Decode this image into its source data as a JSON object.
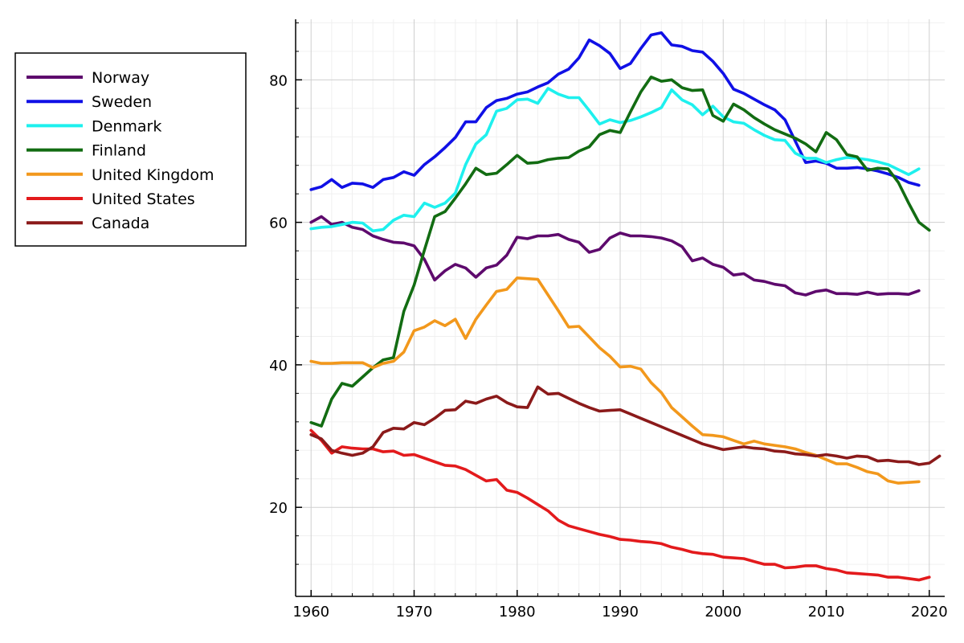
{
  "chart_data": {
    "type": "line",
    "title": "",
    "xlabel": "",
    "ylabel": "",
    "xlim": [
      1958.5,
      2021.5
    ],
    "ylim": [
      7.5,
      88.5
    ],
    "x_ticks": [
      1960,
      1970,
      1980,
      1990,
      2000,
      2010,
      2020
    ],
    "y_ticks": [
      20,
      40,
      60,
      80
    ],
    "x_tick_labels": [
      "1960",
      "1970",
      "1980",
      "1990",
      "2000",
      "2010",
      "2020"
    ],
    "y_tick_labels": [
      "20",
      "40",
      "60",
      "80"
    ],
    "grid": true,
    "minor_grid": true,
    "legend_position": "outer-left",
    "series": [
      {
        "name": "Norway",
        "color": "#5e0a6d",
        "start_year": 1960,
        "values": [
          60.0,
          60.8,
          59.7,
          60.0,
          59.3,
          59.0,
          58.1,
          57.6,
          57.2,
          57.1,
          56.7,
          54.8,
          51.9,
          53.2,
          54.1,
          53.6,
          52.3,
          53.6,
          54.0,
          55.4,
          57.9,
          57.7,
          58.1,
          58.1,
          58.3,
          57.6,
          57.2,
          55.8,
          56.2,
          57.8,
          58.5,
          58.1,
          58.1,
          58.0,
          57.8,
          57.4,
          56.6,
          54.6,
          55.0,
          54.1,
          53.7,
          52.6,
          52.8,
          51.9,
          51.7,
          51.3,
          51.1,
          50.1,
          49.8,
          50.3,
          50.5,
          50.0,
          50.0,
          49.9,
          50.2,
          49.9,
          50.0,
          50.0,
          49.9,
          50.4
        ]
      },
      {
        "name": "Sweden",
        "color": "#1010e6",
        "start_year": 1960,
        "values": [
          64.6,
          65.0,
          66.0,
          64.9,
          65.5,
          65.4,
          64.9,
          66.0,
          66.3,
          67.1,
          66.6,
          68.1,
          69.2,
          70.5,
          71.9,
          74.1,
          74.1,
          76.1,
          77.1,
          77.4,
          78.0,
          78.3,
          79.0,
          79.6,
          80.8,
          81.5,
          83.1,
          85.6,
          84.8,
          83.7,
          81.6,
          82.3,
          84.4,
          86.3,
          86.6,
          84.9,
          84.7,
          84.1,
          83.9,
          82.6,
          80.9,
          78.7,
          78.1,
          77.3,
          76.5,
          75.8,
          74.4,
          71.4,
          68.4,
          68.6,
          68.3,
          67.6,
          67.6,
          67.7,
          67.5,
          67.2,
          66.8,
          66.3,
          65.6,
          65.2
        ]
      },
      {
        "name": "Denmark",
        "color": "#1ef0ee",
        "start_year": 1960,
        "values": [
          59.1,
          59.3,
          59.4,
          59.7,
          60.0,
          59.9,
          58.8,
          59.0,
          60.3,
          61.0,
          60.8,
          62.7,
          62.1,
          62.7,
          64.1,
          68.1,
          71.0,
          72.3,
          75.6,
          76.0,
          77.2,
          77.3,
          76.7,
          78.8,
          78.0,
          77.5,
          77.5,
          75.7,
          73.8,
          74.4,
          74.0,
          74.3,
          74.8,
          75.4,
          76.1,
          78.6,
          77.2,
          76.5,
          75.1,
          76.3,
          74.8,
          74.1,
          73.9,
          73.0,
          72.2,
          71.6,
          71.5,
          69.7,
          69.0,
          69.0,
          68.4,
          68.8,
          69.1,
          69.0,
          68.8,
          68.5,
          68.1,
          67.4,
          66.7,
          67.5
        ]
      },
      {
        "name": "Finland",
        "color": "#126c12",
        "start_year": 1960,
        "values": [
          31.9,
          31.4,
          35.2,
          37.4,
          37.0,
          38.3,
          39.6,
          40.7,
          41.0,
          47.5,
          51.2,
          56.1,
          60.8,
          61.5,
          63.4,
          65.4,
          67.6,
          66.7,
          66.9,
          68.1,
          69.4,
          68.3,
          68.4,
          68.8,
          69.0,
          69.1,
          70.0,
          70.6,
          72.3,
          72.9,
          72.6,
          75.5,
          78.3,
          80.4,
          79.8,
          80.0,
          78.9,
          78.5,
          78.6,
          75.0,
          74.2,
          76.6,
          75.8,
          74.7,
          73.8,
          73.0,
          72.4,
          71.8,
          71.0,
          69.9,
          72.6,
          71.6,
          69.5,
          69.2,
          67.3,
          67.6,
          67.5,
          65.6,
          62.7,
          60.0,
          58.9
        ]
      },
      {
        "name": "United Kingdom",
        "color": "#f2981c",
        "start_year": 1960,
        "values": [
          40.5,
          40.2,
          40.2,
          40.3,
          40.3,
          40.3,
          39.6,
          40.2,
          40.5,
          41.8,
          44.8,
          45.3,
          46.2,
          45.5,
          46.4,
          43.7,
          46.4,
          48.4,
          50.3,
          50.6,
          52.2,
          52.1,
          52.0,
          49.8,
          47.6,
          45.3,
          45.4,
          43.9,
          42.4,
          41.2,
          39.7,
          39.8,
          39.4,
          37.5,
          36.1,
          34.0,
          32.7,
          31.4,
          30.2,
          30.1,
          29.9,
          29.4,
          28.9,
          29.3,
          28.9,
          28.7,
          28.5,
          28.2,
          27.7,
          27.3,
          26.7,
          26.1,
          26.1,
          25.6,
          25.0,
          24.7,
          23.7,
          23.4,
          23.5,
          23.6
        ]
      },
      {
        "name": "United States",
        "color": "#e31a1c",
        "start_year": 1960,
        "values": [
          30.8,
          29.4,
          27.6,
          28.5,
          28.3,
          28.2,
          28.2,
          27.8,
          27.9,
          27.3,
          27.4,
          26.9,
          26.4,
          25.9,
          25.8,
          25.3,
          24.5,
          23.7,
          23.9,
          22.4,
          22.1,
          21.3,
          20.4,
          19.5,
          18.2,
          17.4,
          17.0,
          16.6,
          16.2,
          15.9,
          15.5,
          15.4,
          15.2,
          15.1,
          14.9,
          14.4,
          14.1,
          13.7,
          13.5,
          13.4,
          13.0,
          12.9,
          12.8,
          12.4,
          12.0,
          12.0,
          11.5,
          11.6,
          11.8,
          11.8,
          11.4,
          11.2,
          10.8,
          10.7,
          10.6,
          10.5,
          10.2,
          10.2,
          10.0,
          9.8,
          10.2
        ]
      },
      {
        "name": "Canada",
        "color": "#8b1a1a",
        "start_year": 1960,
        "values": [
          30.2,
          29.6,
          28.0,
          27.6,
          27.3,
          27.6,
          28.5,
          30.5,
          31.1,
          31.0,
          31.9,
          31.6,
          32.5,
          33.6,
          33.7,
          34.9,
          34.6,
          35.2,
          35.6,
          34.7,
          34.1,
          34.0,
          36.9,
          35.9,
          36.0,
          35.3,
          34.6,
          34.0,
          33.5,
          33.6,
          33.7,
          33.1,
          32.5,
          31.9,
          31.3,
          30.7,
          30.1,
          29.5,
          28.9,
          28.5,
          28.1,
          28.3,
          28.5,
          28.3,
          28.2,
          27.9,
          27.8,
          27.5,
          27.4,
          27.2,
          27.4,
          27.2,
          26.9,
          27.2,
          27.1,
          26.5,
          26.6,
          26.4,
          26.4,
          26.0,
          26.2,
          27.2
        ]
      }
    ]
  }
}
